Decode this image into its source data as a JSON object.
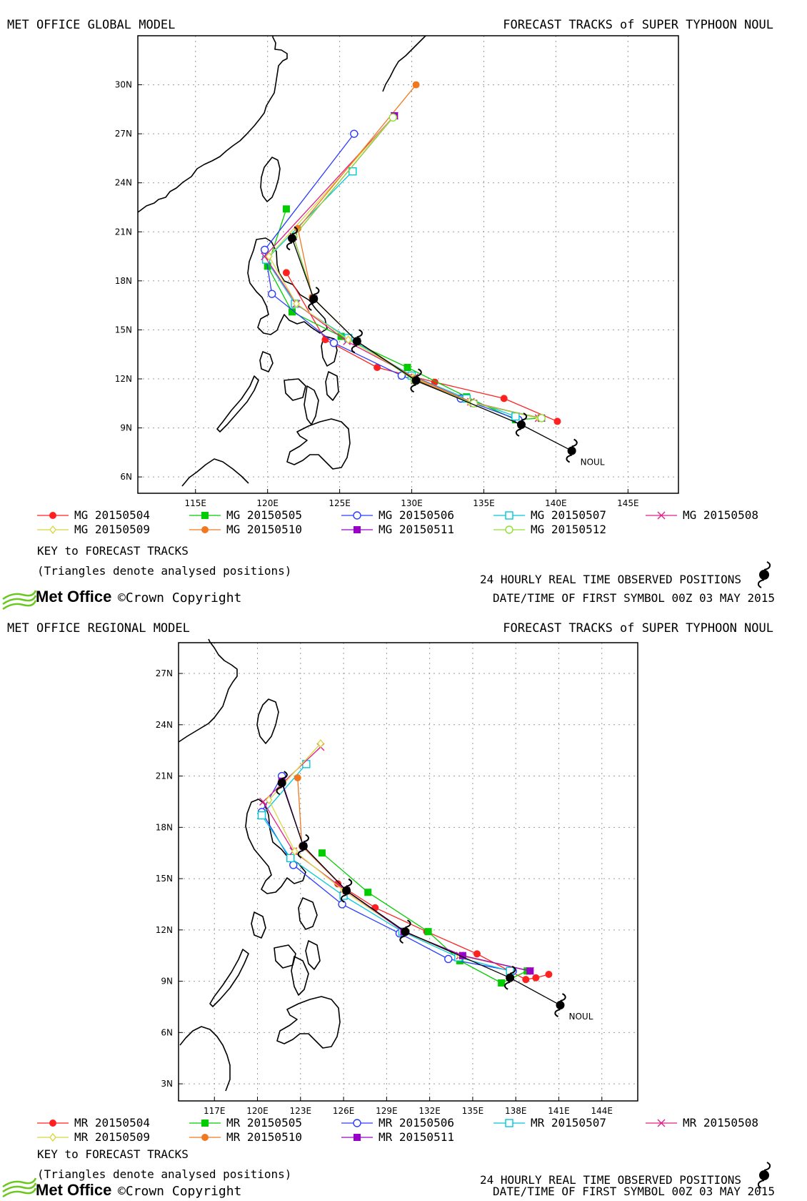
{
  "icon_names": {
    "observed_symbol": "typhoon-symbol-icon",
    "brand_logo": "met-office-wave-icon"
  },
  "colors": {
    "20150504": "#ff2020",
    "20150505": "#00cc00",
    "20150506": "#2a3cff",
    "20150507": "#00c8d8",
    "20150508": "#e0208a",
    "20150509": "#d8d840",
    "20150510": "#f07820",
    "20150511": "#9a00c8",
    "20150512": "#90e030",
    "observed": "#000000",
    "land": "#000000",
    "grid": "#9a9a9a",
    "brand": "#6ac820"
  },
  "global": {
    "left_title": "MET OFFICE GLOBAL MODEL",
    "right_title": "FORECAST TRACKS of SUPER TYPHOON NOUL",
    "key_title": "KEY to FORECAST TRACKS",
    "key_note": "(Triangles denote analysed positions)",
    "obs_label": "24 HOURLY REAL TIME OBSERVED POSITIONS",
    "first_symbol": "DATE/TIME OF FIRST SYMBOL 00Z 03 MAY 2015",
    "brand": "Met Office",
    "copyright": "©Crown Copyright",
    "legend": [
      "MG 20150504",
      "MG 20150505",
      "MG 20150506",
      "MG 20150507",
      "MG 20150508",
      "MG 20150509",
      "MG 20150510",
      "MG 20150511",
      "MG 20150512"
    ]
  },
  "regional": {
    "left_title": "MET OFFICE REGIONAL MODEL",
    "right_title": "FORECAST TRACKS of SUPER TYPHOON NOUL",
    "key_title": "KEY to FORECAST TRACKS",
    "key_note": "(Triangles denote analysed positions)",
    "obs_label": "24 HOURLY REAL TIME OBSERVED POSITIONS",
    "first_symbol": "DATE/TIME OF FIRST SYMBOL 00Z 03 MAY 2015",
    "brand": "Met Office",
    "copyright": "©Crown Copyright",
    "legend": [
      "MR 20150504",
      "MR 20150505",
      "MR 20150506",
      "MR 20150507",
      "MR 20150508",
      "MR 20150509",
      "MR 20150510",
      "MR 20150511"
    ]
  },
  "chart_data": [
    {
      "type": "scatter",
      "title": "FORECAST TRACKS of SUPER TYPHOON NOUL",
      "subtitle": "MET OFFICE GLOBAL MODEL",
      "xlim": [
        111,
        148.5
      ],
      "ylim": [
        5,
        33
      ],
      "x_ticks": [
        115,
        120,
        125,
        130,
        135,
        140,
        145
      ],
      "x_tick_labels": [
        "115E",
        "120E",
        "125E",
        "130E",
        "135E",
        "140E",
        "145E"
      ],
      "y_ticks": [
        6,
        9,
        12,
        15,
        18,
        21,
        24,
        27,
        30
      ],
      "y_tick_labels": [
        "6N",
        "9N",
        "12N",
        "15N",
        "18N",
        "21N",
        "24N",
        "27N",
        "30N"
      ],
      "grid": true,
      "storm_label": "NOUL",
      "observed": {
        "lon": [
          141.1,
          137.6,
          130.3,
          126.2,
          123.2,
          121.7
        ],
        "lat": [
          7.6,
          9.2,
          11.9,
          14.3,
          16.9,
          20.6
        ]
      },
      "series": [
        {
          "name": "MG 20150504",
          "marker": "filled-circle",
          "lon": [
            140.1,
            136.4,
            131.6,
            127.6,
            124.0,
            121.3
          ],
          "lat": [
            9.4,
            10.8,
            11.8,
            12.7,
            14.4,
            18.5
          ]
        },
        {
          "name": "MG 20150505",
          "marker": "filled-square",
          "lon": [
            139.0,
            137.2,
            133.8,
            129.7,
            125.1,
            121.7,
            120.0,
            121.3
          ],
          "lat": [
            9.6,
            9.5,
            10.9,
            12.7,
            14.6,
            16.1,
            18.9,
            22.4
          ]
        },
        {
          "name": "MG 20150506",
          "marker": "open-circle",
          "lon": [
            137.4,
            133.4,
            129.3,
            124.6,
            120.3,
            119.8,
            126.0
          ],
          "lat": [
            9.5,
            10.8,
            12.2,
            14.2,
            17.2,
            19.9,
            27.0
          ]
        },
        {
          "name": "MG 20150507",
          "marker": "open-square",
          "lon": [
            137.2,
            133.8,
            130.0,
            125.6,
            121.9,
            119.9,
            125.9
          ],
          "lat": [
            9.7,
            10.8,
            12.2,
            14.5,
            16.6,
            19.3,
            24.7
          ]
        },
        {
          "name": "MG 20150508",
          "marker": "x",
          "lon": [
            138.8,
            134.1,
            130.2,
            125.5,
            122.0,
            119.8,
            128.8
          ],
          "lat": [
            9.6,
            10.6,
            12.1,
            14.3,
            16.6,
            19.5,
            28.1
          ]
        },
        {
          "name": "MG 20150509",
          "marker": "diamond",
          "lon": [
            138.8,
            134.0,
            130.1,
            125.6,
            122.0,
            120.1,
            128.7
          ],
          "lat": [
            9.6,
            10.6,
            12.1,
            14.4,
            16.6,
            19.5,
            28.0
          ]
        },
        {
          "name": "MG 20150510",
          "marker": "filled-circle",
          "lon": [
            139.0,
            134.3,
            130.2,
            126.2,
            123.1,
            122.1,
            130.3
          ],
          "lat": [
            9.6,
            10.5,
            12.0,
            14.3,
            17.0,
            21.2,
            30.0
          ]
        },
        {
          "name": "MG 20150511",
          "marker": "filled-square",
          "lon": [
            139.0,
            134.3,
            130.2,
            126.2,
            123.2,
            121.8,
            128.8
          ],
          "lat": [
            9.6,
            10.5,
            11.9,
            14.3,
            16.9,
            20.7,
            28.1
          ]
        },
        {
          "name": "MG 20150512",
          "marker": "open-circle",
          "lon": [
            139.0,
            134.3,
            130.2,
            126.2,
            123.2,
            121.8,
            128.7
          ],
          "lat": [
            9.6,
            10.5,
            11.9,
            14.3,
            16.9,
            20.7,
            28.0
          ]
        }
      ]
    },
    {
      "type": "scatter",
      "title": "FORECAST TRACKS of SUPER TYPHOON NOUL",
      "subtitle": "MET OFFICE REGIONAL MODEL",
      "xlim": [
        114.5,
        146.5
      ],
      "ylim": [
        2,
        28.8
      ],
      "x_ticks": [
        117,
        120,
        123,
        126,
        129,
        132,
        135,
        138,
        141,
        144
      ],
      "x_tick_labels": [
        "117E",
        "120E",
        "123E",
        "126E",
        "129E",
        "132E",
        "135E",
        "138E",
        "141E",
        "144E"
      ],
      "y_ticks": [
        3,
        6,
        9,
        12,
        15,
        18,
        21,
        24,
        27
      ],
      "y_tick_labels": [
        "3N",
        "6N",
        "9N",
        "12N",
        "15N",
        "18N",
        "21N",
        "24N",
        "27N"
      ],
      "grid": true,
      "storm_label": "NOUL",
      "observed": {
        "lon": [
          141.1,
          137.6,
          130.3,
          126.2,
          123.2,
          121.7
        ],
        "lat": [
          7.6,
          9.2,
          11.9,
          14.3,
          16.9,
          20.6
        ]
      },
      "series": [
        {
          "name": "MR 20150504",
          "marker": "filled-circle",
          "lon": [
            140.3,
            139.4,
            138.7,
            135.3,
            131.8,
            128.2,
            125.6
          ],
          "lat": [
            9.4,
            9.2,
            9.1,
            10.6,
            11.9,
            13.3,
            14.7
          ]
        },
        {
          "name": "MR 20150505",
          "marker": "filled-square",
          "lon": [
            138.8,
            137.0,
            134.1,
            131.9,
            127.7,
            124.5
          ],
          "lat": [
            9.6,
            8.9,
            10.2,
            11.9,
            14.2,
            16.5
          ]
        },
        {
          "name": "MR 20150506",
          "marker": "open-circle",
          "lon": [
            137.8,
            133.3,
            129.9,
            125.9,
            122.5,
            120.3,
            121.7
          ],
          "lat": [
            9.6,
            10.3,
            11.8,
            13.5,
            15.8,
            18.9,
            21.0
          ]
        },
        {
          "name": "MR 20150507",
          "marker": "open-square",
          "lon": [
            137.6,
            134.0,
            130.1,
            126.0,
            122.3,
            120.3,
            123.4
          ],
          "lat": [
            9.6,
            10.4,
            11.9,
            14.0,
            16.2,
            18.7,
            21.7
          ]
        },
        {
          "name": "MR 20150508",
          "marker": "x",
          "lon": [
            139.0,
            134.1,
            130.2,
            126.0,
            122.5,
            120.4,
            124.4
          ],
          "lat": [
            9.6,
            10.5,
            11.9,
            14.4,
            16.6,
            19.5,
            22.7
          ]
        },
        {
          "name": "MR 20150509",
          "marker": "diamond",
          "lon": [
            139.0,
            134.1,
            130.2,
            126.0,
            122.6,
            120.8,
            124.4
          ],
          "lat": [
            9.6,
            10.5,
            11.9,
            14.3,
            16.6,
            19.6,
            22.9
          ]
        },
        {
          "name": "MR 20150510",
          "marker": "filled-circle",
          "lon": [
            139.0,
            134.3,
            130.2,
            126.2,
            123.1,
            122.8
          ],
          "lat": [
            9.6,
            10.5,
            11.9,
            14.3,
            16.9,
            20.9
          ]
        },
        {
          "name": "MR 20150511",
          "marker": "filled-square",
          "lon": [
            139.0,
            134.3,
            130.2,
            126.2,
            123.2,
            121.7
          ],
          "lat": [
            9.6,
            10.5,
            11.9,
            14.3,
            16.9,
            20.7
          ]
        }
      ]
    }
  ]
}
